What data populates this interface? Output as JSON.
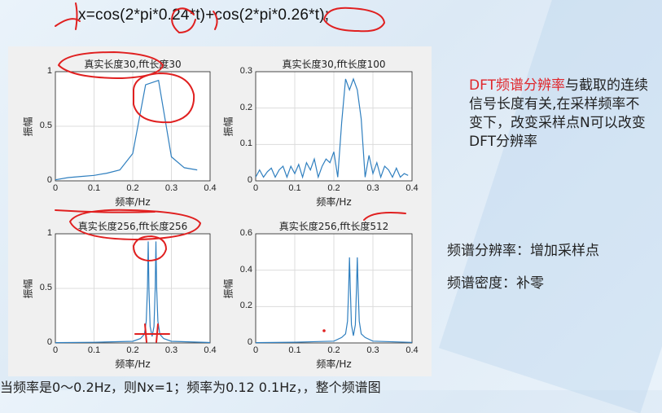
{
  "equation": "x=cos(2*pi*0.24*t)+cos(2*pi*0.26*t);",
  "side": {
    "highlight": "DFT频谱分辨率",
    "rest": "与截取的连续信号长度有关,在采样频率不变下，改变采样点N可以改变DFT分辨率"
  },
  "notes": {
    "resolution": "频谱分辨率：增加采样点",
    "density": "频谱密度：补零"
  },
  "bottom_text": "当频率是0～0.2Hz，则Nx=1；频率为0.12 0.1Hz，，整个频谱图",
  "colors": {
    "line": "#2f7fbf",
    "highlight": "#e0262b",
    "annotation": "#e02020"
  },
  "chart_data": [
    {
      "type": "line",
      "title": "真实长度30,fft长度30",
      "xlabel": "频率/Hz",
      "ylabel": "振幅",
      "xlim": [
        0,
        0.4
      ],
      "ylim": [
        0,
        1
      ],
      "xticks": [
        "0",
        "0.1",
        "0.2",
        "0.3",
        "0.4"
      ],
      "yticks": [
        "0",
        "0.5",
        "1"
      ],
      "grid": true,
      "x": [
        0,
        0.0333,
        0.0667,
        0.1,
        0.1333,
        0.1667,
        0.2,
        0.2333,
        0.2667,
        0.3,
        0.3333,
        0.3667
      ],
      "y": [
        0.01,
        0.03,
        0.04,
        0.05,
        0.07,
        0.1,
        0.25,
        0.88,
        0.92,
        0.22,
        0.12,
        0.1
      ]
    },
    {
      "type": "line",
      "title": "真实长度30,fft长度100",
      "xlabel": "频率/Hz",
      "ylabel": "振幅",
      "xlim": [
        0,
        0.4
      ],
      "ylim": [
        0,
        0.3
      ],
      "xticks": [
        "0",
        "0.1",
        "0.2",
        "0.3",
        "0.4"
      ],
      "yticks": [
        "0",
        "0.1",
        "0.2",
        "0.3"
      ],
      "grid": true,
      "x": [
        0,
        0.01,
        0.02,
        0.03,
        0.04,
        0.05,
        0.06,
        0.07,
        0.08,
        0.09,
        0.1,
        0.11,
        0.12,
        0.13,
        0.14,
        0.15,
        0.16,
        0.17,
        0.18,
        0.19,
        0.2,
        0.21,
        0.22,
        0.23,
        0.24,
        0.25,
        0.26,
        0.27,
        0.28,
        0.29,
        0.3,
        0.31,
        0.32,
        0.33,
        0.34,
        0.35,
        0.36,
        0.37,
        0.38,
        0.39
      ],
      "y": [
        0.01,
        0.03,
        0.01,
        0.025,
        0.035,
        0.01,
        0.03,
        0.04,
        0.01,
        0.04,
        0.02,
        0.045,
        0.01,
        0.05,
        0.03,
        0.06,
        0.01,
        0.04,
        0.06,
        0.05,
        0.08,
        0.01,
        0.16,
        0.28,
        0.25,
        0.28,
        0.25,
        0.17,
        0.01,
        0.07,
        0.02,
        0.05,
        0.01,
        0.04,
        0.03,
        0.01,
        0.035,
        0.01,
        0.02,
        0.015
      ]
    },
    {
      "type": "line",
      "title": "真实长度256,fft长度256",
      "xlabel": "频率/Hz",
      "ylabel": "振幅",
      "xlim": [
        0,
        0.4
      ],
      "ylim": [
        0,
        1
      ],
      "xticks": [
        "0",
        "0.1",
        "0.2",
        "0.3",
        "0.4"
      ],
      "yticks": [
        "0",
        "0.5",
        "1"
      ],
      "grid": true,
      "x": [
        0,
        0.1,
        0.2,
        0.22,
        0.23,
        0.235,
        0.238,
        0.24,
        0.242,
        0.245,
        0.25,
        0.255,
        0.258,
        0.26,
        0.262,
        0.265,
        0.27,
        0.28,
        0.3,
        0.4
      ],
      "y": [
        0.003,
        0.006,
        0.015,
        0.04,
        0.08,
        0.2,
        0.5,
        0.93,
        0.5,
        0.15,
        0.06,
        0.15,
        0.5,
        0.93,
        0.5,
        0.2,
        0.08,
        0.04,
        0.015,
        0.004
      ]
    },
    {
      "type": "line",
      "title": "真实长度256,fft长度512",
      "xlabel": "频率/Hz",
      "ylabel": "振幅",
      "xlim": [
        0,
        0.4
      ],
      "ylim": [
        0,
        0.6
      ],
      "xticks": [
        "0",
        "0.1",
        "0.2",
        "0.3",
        "0.4"
      ],
      "yticks": [
        "0",
        "0.2",
        "0.4",
        "0.6"
      ],
      "grid": true,
      "x": [
        0,
        0.1,
        0.2,
        0.22,
        0.23,
        0.235,
        0.238,
        0.24,
        0.242,
        0.245,
        0.25,
        0.255,
        0.258,
        0.26,
        0.262,
        0.265,
        0.27,
        0.28,
        0.3,
        0.4
      ],
      "y": [
        0.002,
        0.004,
        0.01,
        0.03,
        0.05,
        0.12,
        0.3,
        0.47,
        0.3,
        0.1,
        0.04,
        0.1,
        0.3,
        0.47,
        0.3,
        0.12,
        0.05,
        0.03,
        0.01,
        0.003
      ]
    }
  ]
}
